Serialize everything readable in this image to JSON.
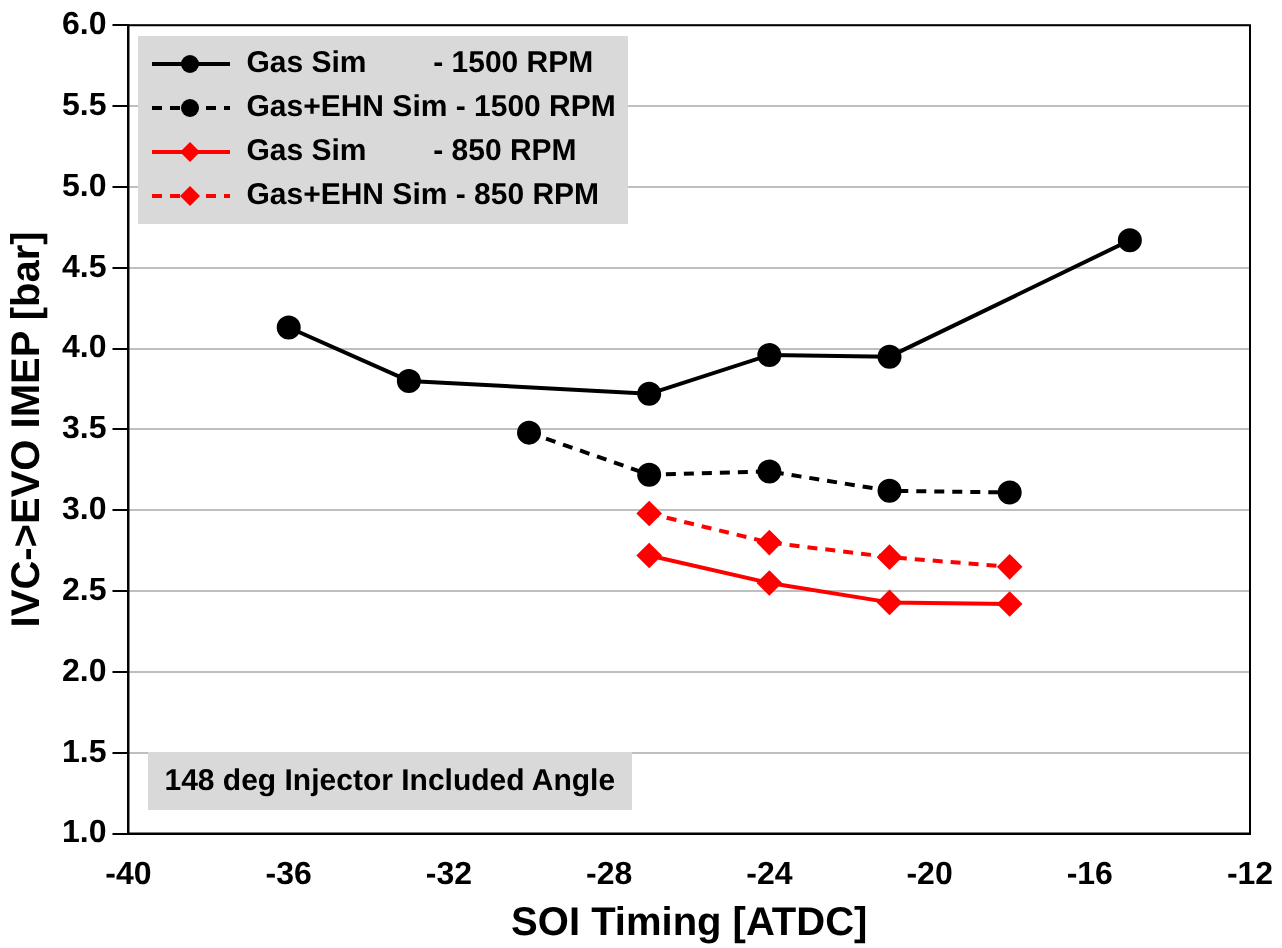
{
  "chart_data": {
    "type": "line",
    "xlabel": "SOI Timing [ATDC]",
    "ylabel": "IVC->EVO IMEP [bar]",
    "xlim": [
      -40,
      -12
    ],
    "xticks": [
      -40,
      -36,
      -32,
      -28,
      -24,
      -20,
      -16,
      -12
    ],
    "ylim": [
      1,
      6
    ],
    "yticks": [
      {
        "value": 1,
        "label": "1.0"
      },
      {
        "value": 1.5,
        "label": "1.5"
      },
      {
        "value": 2,
        "label": "2.0"
      },
      {
        "value": 2.5,
        "label": "2.5"
      },
      {
        "value": 3,
        "label": "3.0"
      },
      {
        "value": 3.5,
        "label": "3.5"
      },
      {
        "value": 4,
        "label": "4.0"
      },
      {
        "value": 4.5,
        "label": "4.5"
      },
      {
        "value": 5,
        "label": "5.0"
      },
      {
        "value": 5.5,
        "label": "5.5"
      },
      {
        "value": 6,
        "label": "6.0"
      }
    ],
    "grid": "y",
    "legend": "top left",
    "annotations": [
      "148 deg Injector Included Angle"
    ],
    "series": [
      {
        "name": "Gas Sim        - 1500 RPM",
        "color": "#000000",
        "marker": "circle",
        "line_style": "solid",
        "x": [
          -36,
          -33,
          -27,
          -24,
          -21,
          -15
        ],
        "values": [
          4.13,
          3.8,
          3.72,
          3.96,
          3.95,
          4.67
        ]
      },
      {
        "name": "Gas+EHN Sim - 1500 RPM",
        "color": "#000000",
        "marker": "circle",
        "line_style": "dashed",
        "x": [
          -30,
          -27,
          -24,
          -21,
          -18
        ],
        "values": [
          3.48,
          3.22,
          3.24,
          3.12,
          3.11
        ]
      },
      {
        "name": "Gas Sim        - 850 RPM",
        "color": "#ff0000",
        "marker": "diamond",
        "line_style": "solid",
        "x": [
          -27,
          -24,
          -21,
          -18
        ],
        "values": [
          2.72,
          2.55,
          2.43,
          2.42
        ]
      },
      {
        "name": "Gas+EHN Sim - 850 RPM",
        "color": "#ff0000",
        "marker": "diamond",
        "line_style": "dashed",
        "x": [
          -27,
          -24,
          -21,
          -18
        ],
        "values": [
          2.98,
          2.8,
          2.71,
          2.65
        ]
      }
    ]
  }
}
